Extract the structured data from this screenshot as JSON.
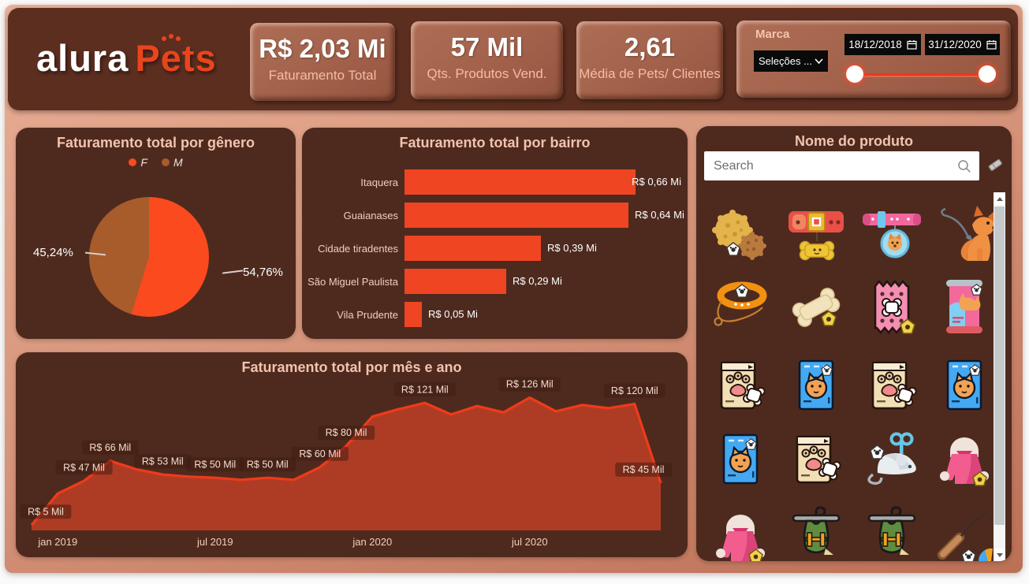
{
  "header": {
    "logo": {
      "alura": "alura",
      "pets": "Pets"
    },
    "kpis": [
      {
        "value": "R$ 2,03 Mi",
        "label": "Faturamento Total"
      },
      {
        "value": "57 Mil",
        "label": "Qts. Produtos Vend."
      },
      {
        "value": "2,61",
        "label": "Média de Pets/ Clientes"
      }
    ],
    "filter": {
      "marca_label": "Marca",
      "selection": "Seleções ...",
      "date_start": "18/12/2018",
      "date_end": "31/12/2020"
    }
  },
  "product_panel": {
    "title": "Nome do produto",
    "search_placeholder": "Search",
    "icons": [
      "cookies-icon",
      "collar-red-icon",
      "collar-pink-tag-icon",
      "dog-with-leash-icon",
      "collar-leash-icon",
      "bone-icon",
      "treat-bag-icon",
      "cat-food-can-icon",
      "dog-food-bag-icon",
      "cat-food-bag-icon",
      "dog-food-bag-icon",
      "cat-food-bag-icon",
      "cat-food-bag-icon",
      "dog-food-bag-icon",
      "mouse-toy-icon",
      "pet-coat-icon",
      "pet-coat-icon",
      "harness-icon",
      "harness-icon",
      "leash-toy-icon"
    ]
  },
  "chart_data": [
    {
      "id": "gender",
      "type": "pie",
      "title": "Faturamento total por gênero",
      "legend_position": "top",
      "slices": [
        {
          "label": "F",
          "pct": 54.76,
          "display": "54,76%",
          "color": "#FA4A1E"
        },
        {
          "label": "M",
          "pct": 45.24,
          "display": "45,24%",
          "color": "#A85C2C"
        }
      ]
    },
    {
      "id": "bairro",
      "type": "bar",
      "title": "Faturamento total por bairro",
      "categories": [
        "Itaquera",
        "Guaianases",
        "Cidade tiradentes",
        "São Miguel Paulista",
        "Vila Prudente"
      ],
      "values": [
        0.66,
        0.64,
        0.39,
        0.29,
        0.05
      ],
      "labels": [
        "R$ 0,66 Mi",
        "R$ 0,64 Mi",
        "R$ 0,39 Mi",
        "R$ 0,29 Mi",
        "R$ 0,05 Mi"
      ],
      "xlim": [
        0,
        0.66
      ],
      "bar_color": "#EF4523",
      "orientation": "horizontal"
    },
    {
      "id": "month",
      "type": "area",
      "title": "Faturamento total por mês e ano",
      "x": [
        "dez 2018",
        "jan 2019",
        "fev 2019",
        "mar 2019",
        "abr 2019",
        "mai 2019",
        "jun 2019",
        "jul 2019",
        "ago 2019",
        "set 2019",
        "out 2019",
        "nov 2019",
        "dez 2019",
        "jan 2020",
        "fev 2020",
        "mar 2020",
        "abr 2020",
        "mai 2020",
        "jun 2020",
        "jul 2020",
        "ago 2020",
        "set 2020",
        "out 2020",
        "nov 2020",
        "dez 2020"
      ],
      "values": [
        5,
        35,
        47,
        66,
        58,
        53,
        51,
        50,
        48,
        50,
        48,
        60,
        80,
        108,
        115,
        121,
        110,
        118,
        112,
        126,
        113,
        119,
        116,
        120,
        45
      ],
      "point_labels": [
        {
          "i": 0,
          "text": "R$ 5 Mil"
        },
        {
          "i": 2,
          "text": "R$ 47 Mil"
        },
        {
          "i": 3,
          "text": "R$ 66 Mil"
        },
        {
          "i": 5,
          "text": "R$ 53 Mil"
        },
        {
          "i": 7,
          "text": "R$ 50 Mil"
        },
        {
          "i": 9,
          "text": "R$ 50 Mil"
        },
        {
          "i": 11,
          "text": "R$ 60 Mil"
        },
        {
          "i": 12,
          "text": "R$ 80 Mil"
        },
        {
          "i": 15,
          "text": "R$ 121 Mil"
        },
        {
          "i": 19,
          "text": "R$ 126 Mil"
        },
        {
          "i": 23,
          "text": "R$ 120 Mil"
        },
        {
          "i": 24,
          "text": "R$ 45 Mil"
        }
      ],
      "x_ticks": [
        {
          "i": 1,
          "label": "jan 2019"
        },
        {
          "i": 7,
          "label": "jul 2019"
        },
        {
          "i": 13,
          "label": "jan 2020"
        },
        {
          "i": 19,
          "label": "jul 2020"
        }
      ],
      "ylim": [
        0,
        145
      ],
      "line_color": "#F03A1A",
      "fill_color": "#AE3C25",
      "label_bg": "rgba(62,26,16,0.5)"
    }
  ]
}
